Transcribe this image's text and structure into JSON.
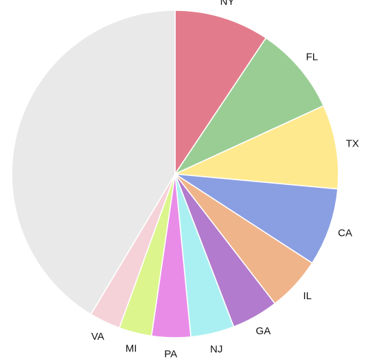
{
  "chart_data": {
    "type": "pie",
    "title": "",
    "legend": "none",
    "start_angle_deg": 0,
    "direction": "clockwise",
    "slices": [
      {
        "label": "NY",
        "value": 6.1,
        "color": "#e27c8c",
        "show_label": true
      },
      {
        "label": "FL",
        "value": 5.7,
        "color": "#99cd94",
        "show_label": true
      },
      {
        "label": "TX",
        "value": 5.4,
        "color": "#ffe98e",
        "show_label": true
      },
      {
        "label": "CA",
        "value": 5.0,
        "color": "#8a9ee2",
        "show_label": true
      },
      {
        "label": "IL",
        "value": 3.5,
        "color": "#f0b48a",
        "show_label": true
      },
      {
        "label": "GA",
        "value": 3.0,
        "color": "#b27bcd",
        "show_label": true
      },
      {
        "label": "NJ",
        "value": 2.8,
        "color": "#aaf0f2",
        "show_label": true
      },
      {
        "label": "PA",
        "value": 2.5,
        "color": "#e88ce8",
        "show_label": true
      },
      {
        "label": "MI",
        "value": 2.1,
        "color": "#dcf58c",
        "show_label": true
      },
      {
        "label": "VA",
        "value": 2.0,
        "color": "#f5d2d8",
        "show_label": true
      },
      {
        "label": "",
        "value": 26.9,
        "color": "#e9e9e9",
        "show_label": false
      }
    ]
  }
}
